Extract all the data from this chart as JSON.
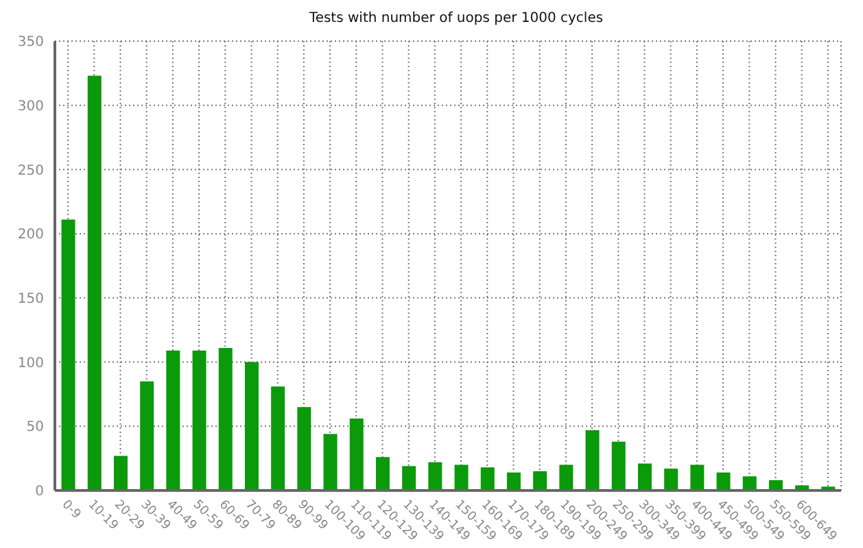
{
  "chart_data": {
    "type": "bar",
    "title": "Tests with number of uops per 1000 cycles",
    "categories": [
      "0-9",
      "10-19",
      "20-29",
      "30-39",
      "40-49",
      "50-59",
      "60-69",
      "70-79",
      "80-89",
      "90-99",
      "100-109",
      "110-119",
      "120-129",
      "130-139",
      "140-149",
      "150-159",
      "160-169",
      "170-179",
      "180-189",
      "190-199",
      "200-249",
      "250-299",
      "300-349",
      "350-399",
      "400-449",
      "450-499",
      "500-549",
      "550-599",
      "600-649",
      null
    ],
    "values": [
      211,
      323,
      27,
      85,
      109,
      109,
      111,
      100,
      81,
      65,
      44,
      56,
      26,
      19,
      22,
      20,
      18,
      14,
      15,
      20,
      47,
      38,
      21,
      17,
      20,
      14,
      11,
      8,
      4,
      3
    ],
    "color": "#0a9a0a",
    "ylim": [
      0,
      350
    ],
    "yticks": [
      0,
      50,
      100,
      150,
      200,
      250,
      300,
      350
    ],
    "grid": true
  }
}
